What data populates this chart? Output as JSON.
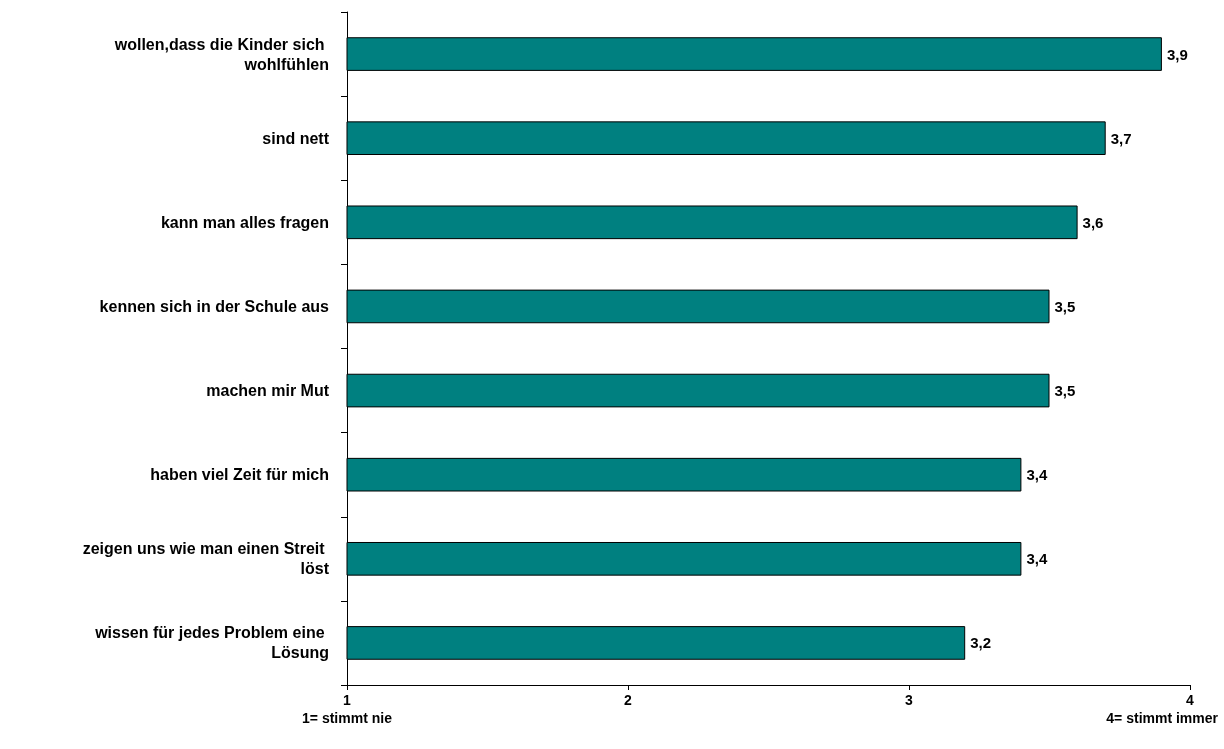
{
  "chart_data": {
    "type": "bar",
    "orientation": "horizontal",
    "categories": [
      "wollen,dass die Kinder sich wohlfühlen",
      "sind nett",
      "kann man alles fragen",
      "kennen sich in der Schule aus",
      "machen mir Mut",
      "haben viel Zeit für mich",
      "zeigen uns wie man einen Streit löst",
      "wissen für jedes Problem eine Lösung"
    ],
    "values": [
      3.9,
      3.7,
      3.6,
      3.5,
      3.5,
      3.4,
      3.4,
      3.2
    ],
    "value_labels": [
      "3,9",
      "3,7",
      "3,6",
      "3,5",
      "3,5",
      "3,4",
      "3,4",
      "3,2"
    ],
    "color": "#008080",
    "xlim": [
      1,
      4
    ],
    "xticks": [
      1,
      2,
      3,
      4
    ],
    "grid": false,
    "annotations": [
      "1= stimmt nie",
      "4= stimmt immer"
    ]
  }
}
